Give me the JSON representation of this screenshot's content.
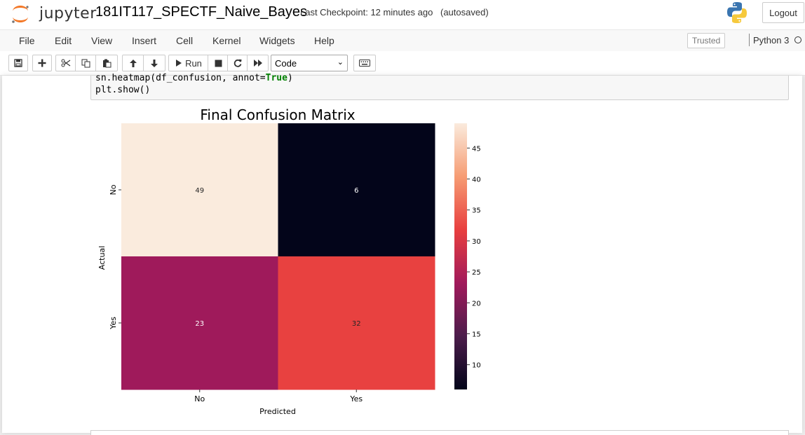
{
  "header": {
    "logo_text": "jupyter",
    "notebook_name": "181IT117_SPECTF_Naive_Bayes",
    "checkpoint": "Last Checkpoint: 12 minutes ago",
    "autosave": "(autosaved)",
    "logout_label": "Logout"
  },
  "menu": {
    "items": [
      "File",
      "Edit",
      "View",
      "Insert",
      "Cell",
      "Kernel",
      "Widgets",
      "Help"
    ],
    "trusted_label": "Trusted",
    "kernel_name": "Python 3"
  },
  "toolbar": {
    "buttons": [
      "save-icon",
      "plus-icon",
      "scissors-icon",
      "copy-icon",
      "paste-icon",
      "arrow-up-icon",
      "arrow-down-icon",
      "run-icon",
      "stop-icon",
      "restart-icon",
      "fast-forward-icon",
      "keyboard-icon"
    ],
    "run_label": "Run",
    "cell_type": "Code"
  },
  "cell": {
    "code_line1_prefix": "sn.heatmap(df_confusion, annot=",
    "code_line1_kw": "True",
    "code_line1_suffix": ")",
    "code_line2": "plt.show()"
  },
  "chart_data": {
    "type": "heatmap",
    "title": "Final Confusion Matrix",
    "xlabel": "Predicted",
    "ylabel": "Actual",
    "x_categories": [
      "No",
      "Yes"
    ],
    "y_categories": [
      "No",
      "Yes"
    ],
    "values": [
      [
        49,
        6
      ],
      [
        23,
        32
      ]
    ],
    "colorbar": {
      "ticks": [
        10,
        15,
        20,
        25,
        30,
        35,
        40,
        45
      ],
      "min": 6,
      "max": 49
    },
    "colormap": [
      "#03051a",
      "#4c1d4b",
      "#a11a5b",
      "#e83f3f",
      "#f69c73",
      "#faebdd"
    ]
  }
}
